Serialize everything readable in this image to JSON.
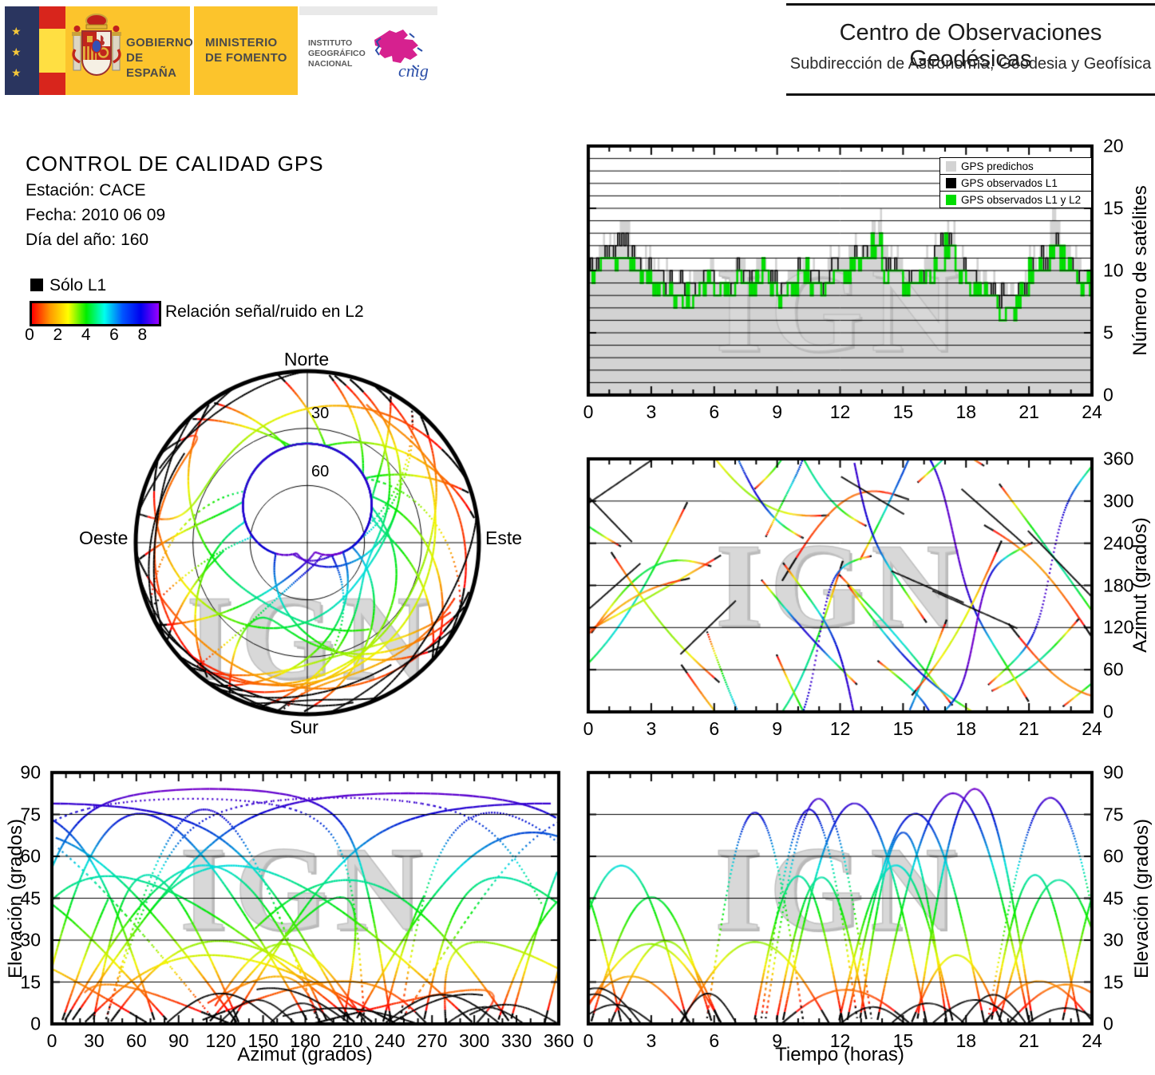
{
  "logos": {
    "gobierno_line1": "GOBIERNO",
    "gobierno_line2": "DE ESPAÑA",
    "ministerio_line1": "MINISTERIO",
    "ministerio_line2": "DE FOMENTO",
    "instituto_line1": "INSTITUTO",
    "instituto_line2": "GEOGRÁFICO",
    "instituto_line3": "NACIONAL",
    "cnig": "cnig",
    "colors": {
      "yellow": "#fcc42c",
      "navy": "#2a355f",
      "flag_red": "#d8251c",
      "flag_yellow": "#ffdf42",
      "magenta": "#d6218f",
      "script_blue": "#2b4ea8"
    }
  },
  "header_right": {
    "title": "Centro de Observaciones Geodésicas",
    "subtitle": "Subdirección de Astronomía, Geodesia y Geofísica"
  },
  "info": {
    "title": "CONTROL DE CALIDAD GPS",
    "station": "Estación: CACE",
    "date": "Fecha: 2010 06 09",
    "day_of_year": "Día del año: 160"
  },
  "l1_legend": {
    "label": "Sólo L1",
    "color": "#000000"
  },
  "colorbar": {
    "label": "Relación señal/ruido en L2",
    "ticks": [
      "0",
      "2",
      "4",
      "6",
      "8"
    ],
    "value_max": 9,
    "colors": [
      "#ff0000",
      "#ff9900",
      "#ffff00",
      "#00ee00",
      "#00ffee",
      "#0055ff",
      "#0000ee",
      "#9900ff"
    ]
  },
  "watermark": "IGN",
  "skyplot_labels": {
    "north": "Norte",
    "south": "Sur",
    "east": "Este",
    "west": "Oeste",
    "ring_labels": [
      "30",
      "60"
    ]
  },
  "chart_data": [
    {
      "id": "satellite_count",
      "type": "area",
      "title": "",
      "xlabel": "",
      "ylabel": "Número de satélites",
      "xlim": [
        0,
        24
      ],
      "ylim": [
        0,
        20
      ],
      "xticks": [
        0,
        3,
        6,
        9,
        12,
        15,
        18,
        21,
        24
      ],
      "yticks": [
        0,
        5,
        10,
        15,
        20
      ],
      "grid": "horizontal lines every 1 satellite",
      "legend_position": "top-right inside",
      "legend": [
        {
          "label": "GPS predichos",
          "color": "#d3d3d3"
        },
        {
          "label": "GPS observados L1",
          "color": "#000000"
        },
        {
          "label": "GPS observados L1 y L2",
          "color": "#00dd00"
        }
      ],
      "x_step_hours": 0.5,
      "series": [
        {
          "name": "GPS predichos",
          "values": [
            11,
            12,
            13,
            14,
            12,
            11,
            10,
            10,
            9,
            9,
            10,
            10,
            9,
            9,
            11,
            10,
            11,
            10,
            9,
            10,
            11,
            10,
            10,
            11,
            11,
            12,
            12,
            14,
            12,
            11,
            10,
            10,
            11,
            13,
            13,
            11,
            10,
            10,
            9,
            9,
            8,
            9,
            11,
            11,
            14,
            12,
            11,
            10,
            11
          ]
        },
        {
          "name": "GPS observados L1",
          "values": [
            10,
            11,
            12,
            12,
            11,
            10,
            10,
            9,
            9,
            9,
            9,
            10,
            9,
            9,
            10,
            10,
            10,
            10,
            9,
            9,
            10,
            10,
            9,
            11,
            10,
            11,
            12,
            12,
            11,
            10,
            10,
            10,
            10,
            12,
            12,
            10,
            10,
            9,
            9,
            8,
            8,
            9,
            10,
            11,
            12,
            11,
            10,
            10,
            10
          ]
        },
        {
          "name": "GPS observados L1 y L2",
          "values": [
            10,
            11,
            11,
            12,
            10,
            10,
            9,
            9,
            8,
            8,
            9,
            9,
            8,
            8,
            10,
            9,
            10,
            9,
            8,
            9,
            10,
            9,
            9,
            10,
            10,
            11,
            11,
            12,
            10,
            10,
            9,
            9,
            10,
            11,
            12,
            10,
            9,
            9,
            8,
            7,
            7,
            8,
            10,
            10,
            12,
            11,
            10,
            9,
            10
          ]
        }
      ]
    },
    {
      "id": "skyplot",
      "type": "line",
      "projection": "polar",
      "cardinal_labels": [
        "Norte",
        "Este",
        "Sur",
        "Oeste"
      ],
      "elevation_rings": [
        30,
        60
      ],
      "horizon_elevation": 0,
      "series_note": "Trayectorias de ~35 satélites GPS sobre la estación; el color indica la relación señal/ruido en L2 (0–9, arcoíris rojo→violeta); trazos negros = sólo L1; hueco sin trazas hacia el Norte"
    },
    {
      "id": "azimuth_vs_time",
      "type": "line",
      "title": "",
      "xlabel": "",
      "ylabel": "Azimut (grados)",
      "xlim": [
        0,
        24
      ],
      "ylim": [
        0,
        360
      ],
      "xticks": [
        0,
        3,
        6,
        9,
        12,
        15,
        18,
        21,
        24
      ],
      "yticks": [
        0,
        60,
        120,
        180,
        240,
        300,
        360
      ],
      "grid": "horizontal lines every 60 degrees",
      "series_note": "Azimut de cada satélite frente al tiempo; color = relación señal/ruido en L2; negro = sólo L1"
    },
    {
      "id": "elevation_vs_azimuth",
      "type": "line",
      "title": "",
      "xlabel": "Azimut (grados)",
      "ylabel": "Elevación (grados)",
      "xlim": [
        0,
        360
      ],
      "ylim": [
        0,
        90
      ],
      "xticks": [
        0,
        30,
        60,
        90,
        120,
        150,
        180,
        210,
        240,
        270,
        300,
        330,
        360
      ],
      "yticks": [
        0,
        15,
        30,
        45,
        60,
        75,
        90
      ],
      "grid": "horizontal lines every 15 degrees",
      "series_note": "Arcos de elevación frente a azimut; azul = elevación alta, rojo/negro = elevación baja"
    },
    {
      "id": "elevation_vs_time",
      "type": "line",
      "title": "",
      "xlabel": "Tiempo (horas)",
      "ylabel": "Elevación (grados)",
      "xlim": [
        0,
        24
      ],
      "ylim": [
        0,
        90
      ],
      "xticks": [
        0,
        3,
        6,
        9,
        12,
        15,
        18,
        21,
        24
      ],
      "yticks": [
        0,
        15,
        30,
        45,
        60,
        75,
        90
      ],
      "grid": "horizontal lines every 15 degrees",
      "series_note": "Arcos de elevación de cada paso de satélite durante 24 horas; color = relación señal/ruido en L2"
    }
  ]
}
